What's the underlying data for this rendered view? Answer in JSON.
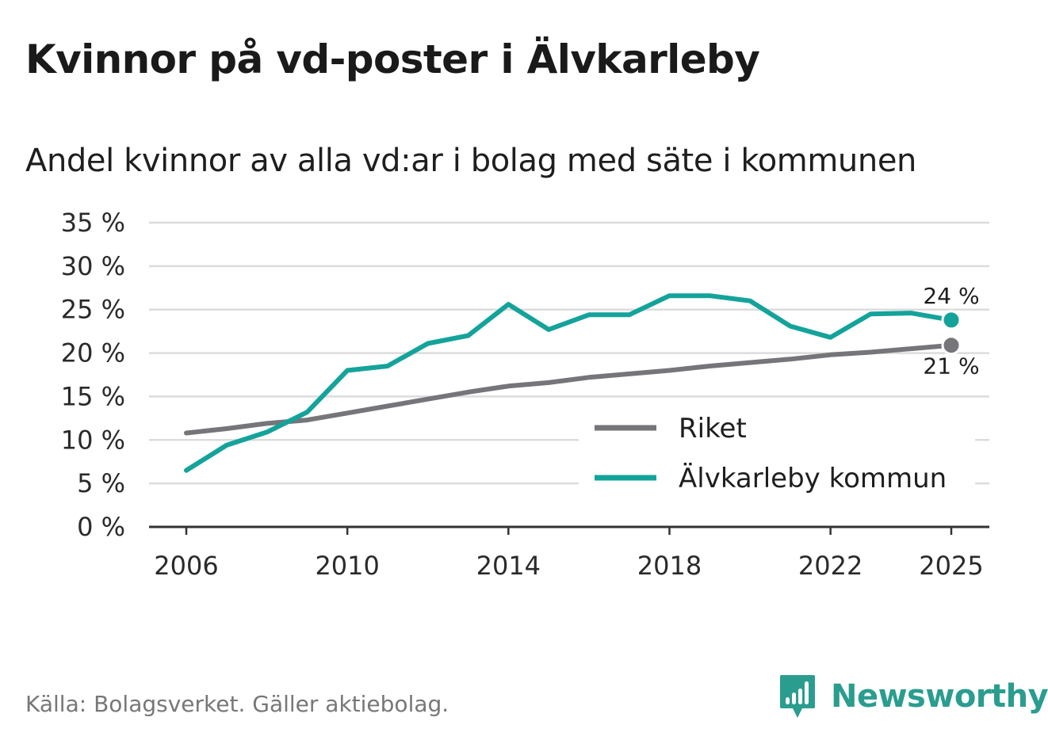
{
  "title": "Kvinnor på vd-poster i Älvkarleby",
  "subtitle": "Andel kvinnor av alla vd:ar i bolag med säte i kommunen",
  "source": "Källa: Bolagsverket. Gäller aktiebolag.",
  "brand": "Newsworthy",
  "colors": {
    "riket": "#76757a",
    "alvkarleby": "#14a39a",
    "grid": "#dcdcdc",
    "axis": "#333333",
    "brand": "#2a9d8f"
  },
  "chart_data": {
    "type": "line",
    "title": "Kvinnor på vd-poster i Älvkarleby",
    "subtitle": "Andel kvinnor av alla vd:ar i bolag med säte i kommunen",
    "xlabel": "",
    "ylabel": "",
    "ylim": [
      0,
      35
    ],
    "xlim": [
      2006,
      2025
    ],
    "grid": true,
    "y_ticks": [
      {
        "value": 0,
        "label": "0 %"
      },
      {
        "value": 5,
        "label": "5 %"
      },
      {
        "value": 10,
        "label": "10 %"
      },
      {
        "value": 15,
        "label": "15 %"
      },
      {
        "value": 20,
        "label": "20 %"
      },
      {
        "value": 25,
        "label": "25 %"
      },
      {
        "value": 30,
        "label": "30 %"
      },
      {
        "value": 35,
        "label": "35 %"
      }
    ],
    "x_ticks": [
      {
        "value": 2006,
        "label": "2006"
      },
      {
        "value": 2010,
        "label": "2010"
      },
      {
        "value": 2014,
        "label": "2014"
      },
      {
        "value": 2018,
        "label": "2018"
      },
      {
        "value": 2022,
        "label": "2022"
      },
      {
        "value": 2025,
        "label": "2025"
      }
    ],
    "x": [
      2006,
      2007,
      2008,
      2009,
      2010,
      2011,
      2012,
      2013,
      2014,
      2015,
      2016,
      2017,
      2018,
      2019,
      2020,
      2021,
      2022,
      2023,
      2024,
      2025
    ],
    "legend_position": "bottom-right",
    "series": [
      {
        "name": "Riket",
        "key": "riket",
        "values": [
          10.8,
          11.3,
          11.9,
          12.3,
          13.1,
          13.9,
          14.7,
          15.5,
          16.2,
          16.6,
          17.2,
          17.6,
          18.0,
          18.5,
          18.9,
          19.3,
          19.8,
          20.1,
          20.5,
          20.9
        ],
        "end_label": "21 %",
        "end_label_position": "below"
      },
      {
        "name": "Älvkarleby kommun",
        "key": "alvkarleby",
        "values": [
          6.5,
          9.4,
          10.9,
          13.2,
          18.0,
          18.5,
          21.1,
          22.0,
          25.6,
          22.7,
          24.4,
          24.4,
          26.6,
          26.6,
          26.0,
          23.1,
          21.8,
          24.5,
          24.6,
          23.8
        ],
        "end_label": "24 %",
        "end_label_position": "above"
      }
    ]
  }
}
